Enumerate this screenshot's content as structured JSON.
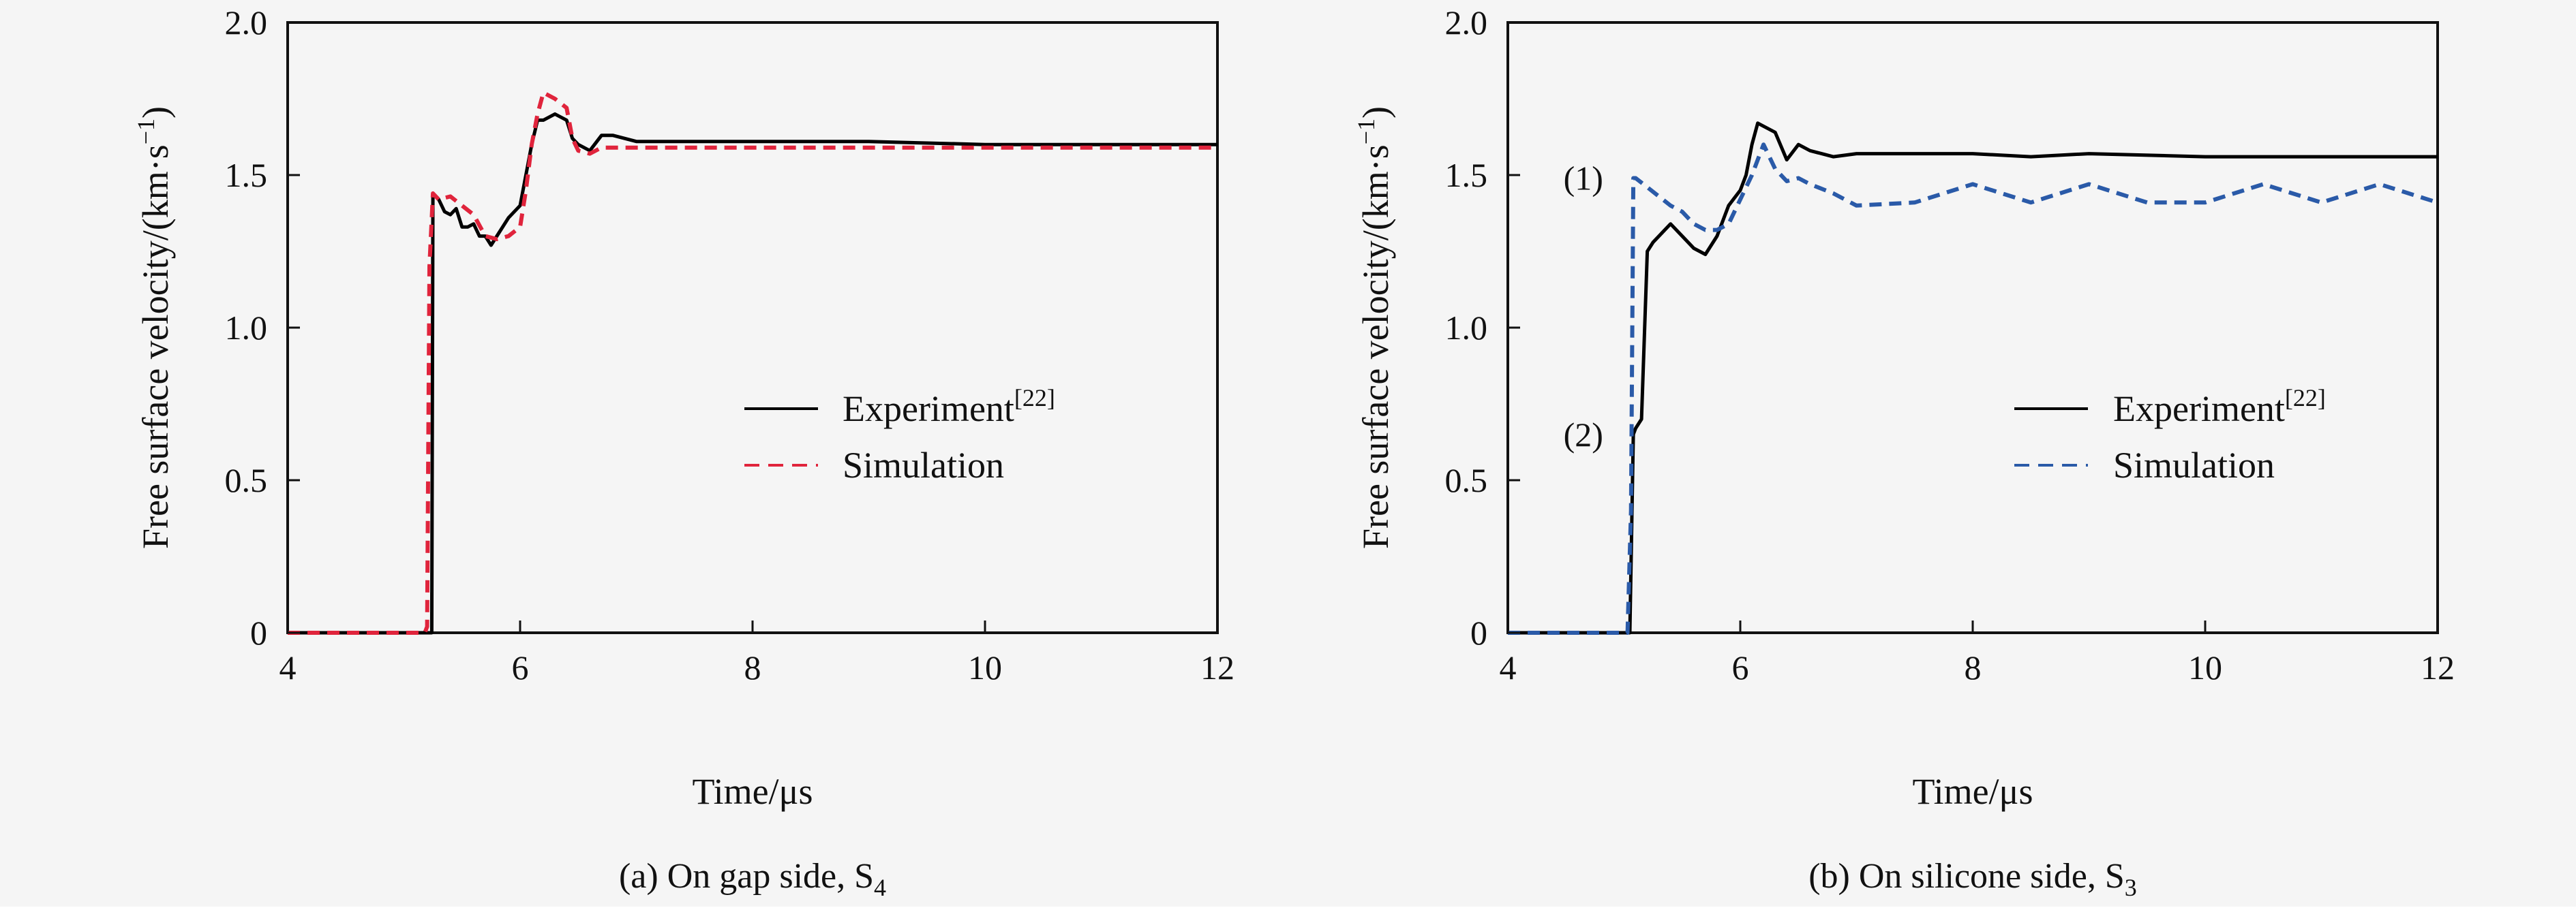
{
  "colors": {
    "background": "#f5f5f5",
    "experiment": "#000000",
    "simulation_a": "#e0243c",
    "simulation_b": "#2a5aa8"
  },
  "chart_data": [
    {
      "type": "line",
      "caption": "(a) On gap side, S",
      "caption_sub": "4",
      "xlabel": "Time/μs",
      "ylabel": "Free surface velocity/(km·s",
      "ylabel_sup": "−1",
      "ylabel_close": ")",
      "xlim": [
        4,
        12
      ],
      "ylim": [
        0,
        2.0
      ],
      "xticks": [
        4,
        6,
        8,
        10,
        12
      ],
      "xtick_labels": [
        "4",
        "6",
        "8",
        "10",
        "12"
      ],
      "yticks": [
        0,
        0.5,
        1.0,
        1.5,
        2.0
      ],
      "ytick_labels": [
        "0",
        "0.5",
        "1.0",
        "1.5",
        "2.0"
      ],
      "legend": {
        "position": "center-right",
        "entries": [
          {
            "label": "Experiment",
            "sup": "[22]",
            "style": "solid",
            "color": "#000000"
          },
          {
            "label": "Simulation",
            "sup": "",
            "style": "dashed",
            "color": "#e0243c"
          }
        ]
      },
      "annotations": [],
      "series": [
        {
          "name": "Experiment",
          "style": "solid",
          "color": "#000000",
          "x": [
            4.0,
            5.24,
            5.25,
            5.3,
            5.35,
            5.4,
            5.45,
            5.5,
            5.55,
            5.6,
            5.65,
            5.7,
            5.75,
            5.8,
            5.9,
            6.0,
            6.05,
            6.1,
            6.15,
            6.2,
            6.3,
            6.4,
            6.45,
            6.5,
            6.6,
            6.7,
            6.8,
            7.0,
            7.5,
            8.0,
            9.0,
            10.0,
            11.0,
            12.0
          ],
          "y": [
            0.0,
            0.0,
            1.44,
            1.42,
            1.38,
            1.37,
            1.39,
            1.33,
            1.33,
            1.34,
            1.3,
            1.3,
            1.27,
            1.3,
            1.36,
            1.4,
            1.5,
            1.6,
            1.68,
            1.68,
            1.7,
            1.68,
            1.62,
            1.6,
            1.58,
            1.63,
            1.63,
            1.61,
            1.61,
            1.61,
            1.61,
            1.6,
            1.6,
            1.6
          ]
        },
        {
          "name": "Simulation",
          "style": "dashed",
          "color": "#e0243c",
          "x": [
            4.0,
            5.18,
            5.2,
            5.22,
            5.25,
            5.3,
            5.4,
            5.5,
            5.6,
            5.7,
            5.8,
            5.9,
            6.0,
            6.05,
            6.1,
            6.15,
            6.2,
            6.3,
            6.4,
            6.45,
            6.5,
            6.6,
            6.7,
            7.0,
            8.0,
            9.0,
            10.0,
            11.0,
            12.0
          ],
          "y": [
            0.0,
            0.0,
            0.02,
            1.2,
            1.44,
            1.42,
            1.43,
            1.4,
            1.37,
            1.3,
            1.29,
            1.3,
            1.33,
            1.45,
            1.6,
            1.7,
            1.77,
            1.75,
            1.72,
            1.62,
            1.58,
            1.57,
            1.59,
            1.59,
            1.59,
            1.59,
            1.59,
            1.59,
            1.59
          ]
        }
      ]
    },
    {
      "type": "line",
      "caption": "(b) On silicone side, S",
      "caption_sub": "3",
      "xlabel": "Time/μs",
      "ylabel": "Free surface velocity/(km·s",
      "ylabel_sup": "−1",
      "ylabel_close": ")",
      "xlim": [
        4,
        12
      ],
      "ylim": [
        0,
        2.0
      ],
      "xticks": [
        4,
        6,
        8,
        10,
        12
      ],
      "xtick_labels": [
        "4",
        "6",
        "8",
        "10",
        "12"
      ],
      "yticks": [
        0,
        0.5,
        1.0,
        1.5,
        2.0
      ],
      "ytick_labels": [
        "0",
        "0.5",
        "1.0",
        "1.5",
        "2.0"
      ],
      "legend": {
        "position": "center-right",
        "entries": [
          {
            "label": "Experiment",
            "sup": "[22]",
            "style": "solid",
            "color": "#000000"
          },
          {
            "label": "Simulation",
            "sup": "",
            "style": "dashed",
            "color": "#2a5aa8"
          }
        ]
      },
      "annotations": [
        {
          "text": "(1)",
          "x": 4.65,
          "y": 1.49
        },
        {
          "text": "(2)",
          "x": 4.65,
          "y": 0.65
        }
      ],
      "series": [
        {
          "name": "Experiment",
          "style": "solid",
          "color": "#000000",
          "x": [
            4.0,
            5.05,
            5.08,
            5.1,
            5.15,
            5.2,
            5.25,
            5.3,
            5.35,
            5.4,
            5.5,
            5.6,
            5.7,
            5.8,
            5.9,
            6.0,
            6.05,
            6.1,
            6.15,
            6.2,
            6.3,
            6.4,
            6.5,
            6.6,
            6.7,
            6.8,
            7.0,
            7.5,
            8.0,
            8.5,
            9.0,
            10.0,
            11.0,
            12.0
          ],
          "y": [
            0.0,
            0.0,
            0.65,
            0.67,
            0.7,
            1.25,
            1.28,
            1.3,
            1.32,
            1.34,
            1.3,
            1.26,
            1.24,
            1.3,
            1.4,
            1.45,
            1.5,
            1.6,
            1.67,
            1.66,
            1.64,
            1.55,
            1.6,
            1.58,
            1.57,
            1.56,
            1.57,
            1.57,
            1.57,
            1.56,
            1.57,
            1.56,
            1.56,
            1.56
          ]
        },
        {
          "name": "Simulation",
          "style": "dashed",
          "color": "#2a5aa8",
          "x": [
            4.0,
            5.03,
            5.06,
            5.08,
            5.1,
            5.2,
            5.3,
            5.4,
            5.5,
            5.6,
            5.7,
            5.8,
            5.9,
            6.0,
            6.1,
            6.2,
            6.3,
            6.4,
            6.5,
            6.6,
            6.8,
            7.0,
            7.5,
            8.0,
            8.5,
            9.0,
            9.5,
            10.0,
            10.5,
            11.0,
            11.5,
            12.0
          ],
          "y": [
            0.0,
            0.0,
            0.4,
            1.49,
            1.49,
            1.46,
            1.43,
            1.4,
            1.38,
            1.34,
            1.32,
            1.32,
            1.34,
            1.42,
            1.5,
            1.6,
            1.52,
            1.48,
            1.49,
            1.47,
            1.44,
            1.4,
            1.41,
            1.47,
            1.41,
            1.47,
            1.41,
            1.41,
            1.47,
            1.41,
            1.47,
            1.41
          ]
        }
      ]
    }
  ]
}
